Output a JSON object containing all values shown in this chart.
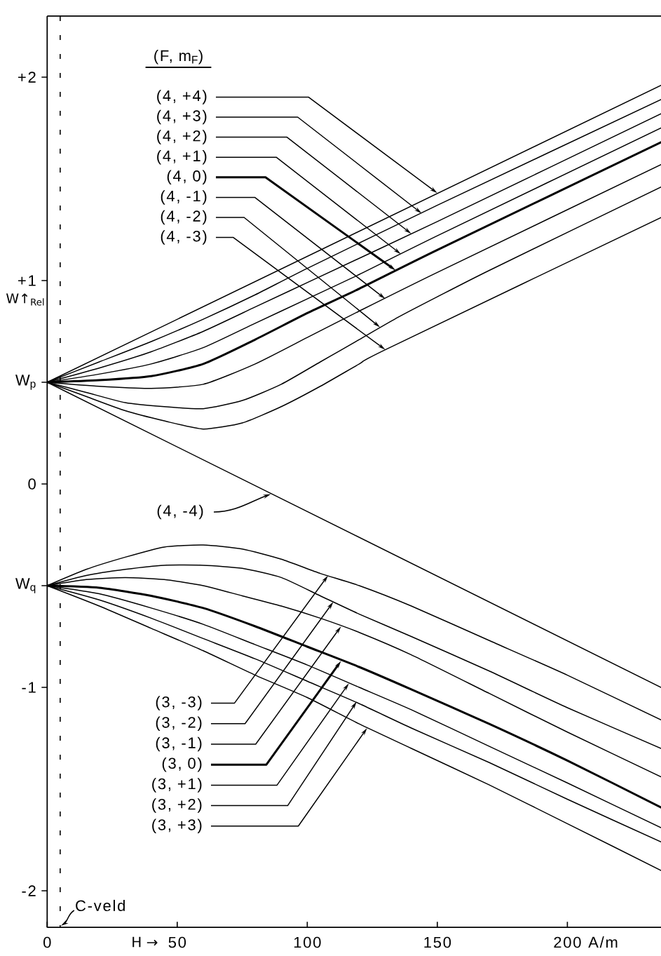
{
  "chart_data": {
    "type": "line",
    "xlabel": "H →",
    "ylabel": "W↑$_{Rel}$",
    "xlim": [
      0,
      236
    ],
    "ylim": [
      -2.18,
      2.3
    ],
    "xticks": [
      0,
      50,
      100,
      150,
      200
    ],
    "yticks": [
      {
        "value": 2,
        "label": "+2"
      },
      {
        "value": 1,
        "label": "+1"
      },
      {
        "value": 0.5,
        "label": "W$_{p}$"
      },
      0,
      {
        "value": -0.5,
        "label": "W$_{q}$"
      },
      -1,
      -2
    ],
    "ref_lines": [
      {
        "axis": "x",
        "value": 5,
        "label": "C-veld",
        "line_style": "dashed"
      }
    ],
    "annotations": [
      "(F, m$_{F}$)",
      {
        "text": "(4, +4)",
        "x": 150,
        "y": 1.43
      },
      {
        "text": "(4, +3)",
        "x": 144,
        "y": 1.33
      },
      {
        "text": "(4, +2)",
        "x": 140,
        "y": 1.23
      },
      {
        "text": "(4, +1)",
        "x": 136,
        "y": 1.13
      },
      {
        "text": "(4, 0)",
        "x": 134,
        "y": 1.05
      },
      {
        "text": "(4, -1)",
        "x": 130,
        "y": 0.91
      },
      {
        "text": "(4, -2)",
        "x": 128,
        "y": 0.77
      },
      {
        "text": "(4, -3)",
        "x": 130,
        "y": 0.66
      },
      {
        "text": "(4, -4)",
        "x": 86,
        "y": -0.05
      },
      {
        "text": "(3, -3)",
        "x": 108,
        "y": -0.45
      },
      {
        "text": "(3, -2)",
        "x": 110,
        "y": -0.58
      },
      {
        "text": "(3, -1)",
        "x": 113,
        "y": -0.7
      },
      {
        "text": "(3, 0)",
        "x": 113,
        "y": -0.87
      },
      {
        "text": "(3, +1)",
        "x": 116,
        "y": -0.98
      },
      {
        "text": "(3, +2)",
        "x": 119,
        "y": -1.07
      },
      {
        "text": "(3, +3)",
        "x": 123,
        "y": -1.2
      },
      "A/m"
    ],
    "series": [
      {
        "color": "#000000",
        "x": [
          0,
          236
        ],
        "values": [
          0.5,
          1.96
        ]
      },
      {
        "color": "#000000",
        "x": [
          0,
          20,
          40,
          60,
          80,
          100,
          150,
          236
        ],
        "values": [
          0.5,
          0.6,
          0.7,
          0.81,
          0.93,
          1.06,
          1.37,
          1.89
        ]
      },
      {
        "color": "#000000",
        "x": [
          0,
          20,
          40,
          60,
          80,
          100,
          150,
          236
        ],
        "values": [
          0.5,
          0.57,
          0.65,
          0.75,
          0.87,
          0.99,
          1.29,
          1.82
        ]
      },
      {
        "color": "#000000",
        "x": [
          0,
          20,
          40,
          60,
          80,
          100,
          120,
          150,
          236
        ],
        "values": [
          0.5,
          0.54,
          0.59,
          0.67,
          0.79,
          0.91,
          1.03,
          1.22,
          1.75
        ]
      },
      {
        "color": "#000000",
        "x": [
          0,
          20,
          40,
          60,
          80,
          100,
          120,
          150,
          236
        ],
        "values": [
          0.5,
          0.51,
          0.53,
          0.59,
          0.71,
          0.84,
          0.96,
          1.15,
          1.68
        ]
      },
      {
        "color": "#000000",
        "x": [
          0,
          20,
          40,
          60,
          80,
          100,
          120,
          150,
          236
        ],
        "values": [
          0.5,
          0.48,
          0.47,
          0.49,
          0.59,
          0.72,
          0.85,
          1.04,
          1.57
        ]
      },
      {
        "color": "#000000",
        "x": [
          0,
          15,
          30,
          45,
          60,
          75,
          90,
          105,
          120,
          135,
          150,
          170,
          236
        ],
        "values": [
          0.5,
          0.45,
          0.4,
          0.38,
          0.37,
          0.41,
          0.49,
          0.6,
          0.71,
          0.82,
          0.92,
          1.05,
          1.46
        ]
      },
      {
        "color": "#000000",
        "x": [
          0,
          15,
          30,
          45,
          60,
          75,
          90,
          105,
          120,
          130,
          236
        ],
        "values": [
          0.5,
          0.43,
          0.36,
          0.31,
          0.27,
          0.3,
          0.38,
          0.48,
          0.59,
          0.66,
          1.31
        ]
      },
      {
        "color": "#000000",
        "x": [
          0,
          236
        ],
        "values": [
          0.5,
          -1.0
        ]
      },
      {
        "color": "#000000",
        "x": [
          0,
          15,
          30,
          45,
          60,
          75,
          90,
          105,
          120,
          140,
          170,
          200,
          236
        ],
        "values": [
          -0.5,
          -0.42,
          -0.36,
          -0.31,
          -0.3,
          -0.32,
          -0.37,
          -0.44,
          -0.5,
          -0.6,
          -0.77,
          -0.94,
          -1.16
        ]
      },
      {
        "color": "#000000",
        "x": [
          0,
          15,
          30,
          45,
          60,
          75,
          90,
          105,
          120,
          140,
          170,
          200,
          236
        ],
        "values": [
          -0.5,
          -0.45,
          -0.42,
          -0.4,
          -0.4,
          -0.415,
          -0.46,
          -0.55,
          -0.64,
          -0.75,
          -0.92,
          -1.1,
          -1.3
        ]
      },
      {
        "color": "#000000",
        "x": [
          0,
          15,
          30,
          45,
          60,
          75,
          90,
          105,
          120,
          140,
          170,
          200,
          236
        ],
        "values": [
          -0.5,
          -0.47,
          -0.46,
          -0.47,
          -0.5,
          -0.55,
          -0.6,
          -0.66,
          -0.73,
          -0.84,
          -1.03,
          -1.22,
          -1.44
        ]
      },
      {
        "color": "#000000",
        "x": [
          0,
          20,
          40,
          60,
          80,
          100,
          120,
          140,
          170,
          200,
          236
        ],
        "values": [
          -0.5,
          -0.51,
          -0.55,
          -0.61,
          -0.7,
          -0.8,
          -0.9,
          -1.01,
          -1.18,
          -1.36,
          -1.59
        ]
      },
      {
        "color": "#000000",
        "x": [
          0,
          20,
          40,
          60,
          80,
          100,
          120,
          140,
          170,
          200,
          236
        ],
        "values": [
          -0.5,
          -0.54,
          -0.61,
          -0.69,
          -0.79,
          -0.89,
          -1.0,
          -1.11,
          -1.29,
          -1.47,
          -1.69
        ]
      },
      {
        "color": "#000000",
        "x": [
          0,
          20,
          40,
          60,
          80,
          100,
          120,
          140,
          170,
          200,
          236
        ],
        "values": [
          -0.5,
          -0.57,
          -0.66,
          -0.76,
          -0.86,
          -0.97,
          -1.08,
          -1.2,
          -1.37,
          -1.55,
          -1.76
        ]
      },
      {
        "color": "#000000",
        "x": [
          0,
          20,
          40,
          60,
          80,
          100,
          120,
          140,
          170,
          200,
          236
        ],
        "values": [
          -0.5,
          -0.6,
          -0.71,
          -0.82,
          -0.94,
          -1.05,
          -1.18,
          -1.3,
          -1.48,
          -1.67,
          -1.9
        ]
      }
    ]
  }
}
